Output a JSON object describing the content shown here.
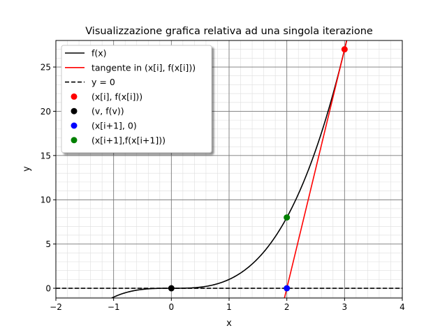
{
  "chart_data": {
    "type": "line",
    "title": "Visualizzazione grafica relativa ad una singola iterazione",
    "xlabel": "x",
    "ylabel": "y",
    "xlim": [
      -2,
      4
    ],
    "ylim": [
      -1.1,
      28
    ],
    "x_ticks": [
      -2,
      -1,
      0,
      1,
      2,
      3,
      4
    ],
    "y_ticks": [
      0,
      5,
      10,
      15,
      20,
      25
    ],
    "grid": true,
    "minor_grid": true,
    "legend_position": "top-left",
    "series": [
      {
        "name": "f(x)",
        "kind": "function",
        "expression": "x^3",
        "domain": [
          -1.033,
          3.04
        ],
        "color": "#000000",
        "dash": "solid"
      },
      {
        "name": "tangente in (x[i], f(x[i]))",
        "kind": "line",
        "points": [
          [
            1.96,
            -1.08
          ],
          [
            3.04,
            28.08
          ]
        ],
        "color": "#ff0000",
        "dash": "solid"
      },
      {
        "name": "y = 0",
        "kind": "line",
        "points": [
          [
            -2,
            0
          ],
          [
            4,
            0
          ]
        ],
        "color": "#000000",
        "dash": "dashed"
      },
      {
        "name": "(x[i], f(x[i]))",
        "kind": "point",
        "x": 3,
        "y": 27,
        "color": "#ff0000"
      },
      {
        "name": "(v, f(v))",
        "kind": "point",
        "x": 0,
        "y": 0,
        "color": "#000000"
      },
      {
        "name": "(x[i+1], 0)",
        "kind": "point",
        "x": 2,
        "y": 0,
        "color": "#0000ff"
      },
      {
        "name": "(x[i+1],f(x[i+1]))",
        "kind": "point",
        "x": 2,
        "y": 8,
        "color": "#008000"
      }
    ]
  }
}
